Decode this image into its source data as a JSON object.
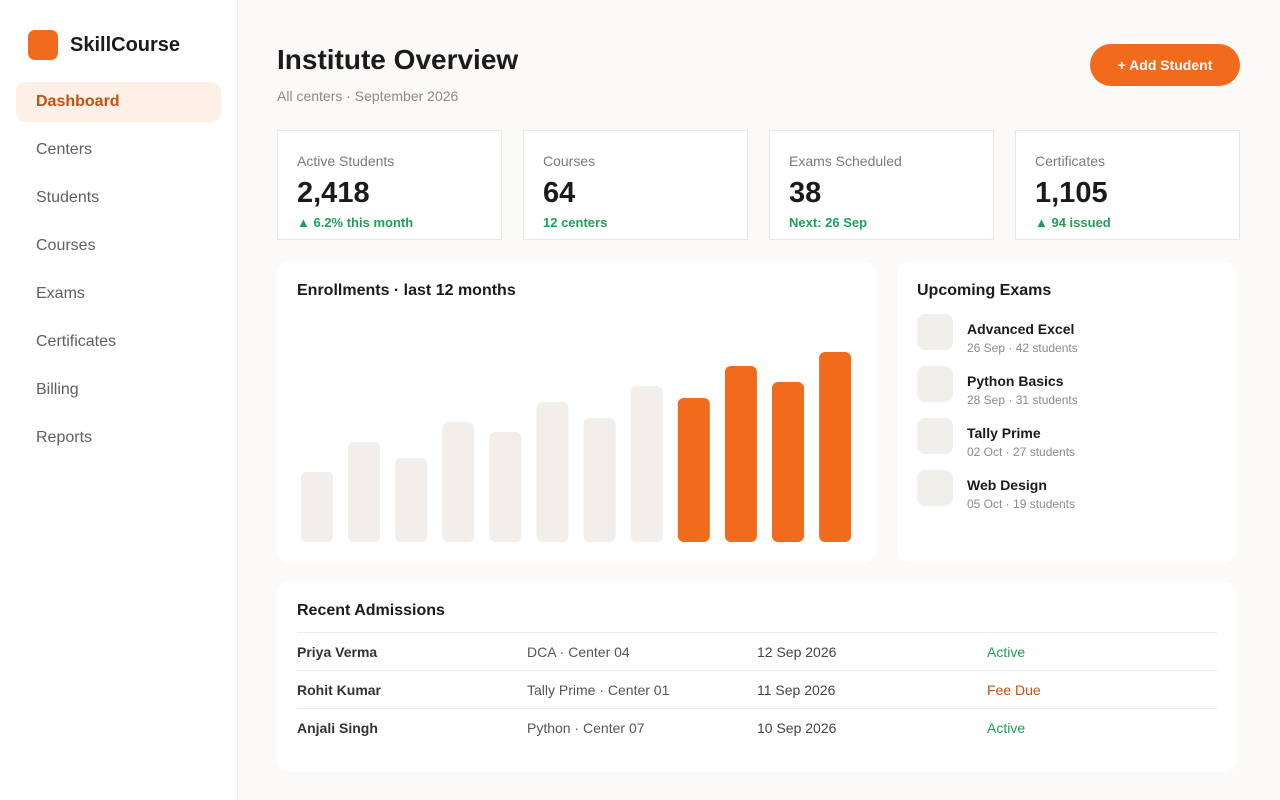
{
  "brand": {
    "name": "SkillCourse",
    "accent": "#f26b1d"
  },
  "sidebar": {
    "items": [
      {
        "label": "Dashboard",
        "active": true
      },
      {
        "label": "Centers"
      },
      {
        "label": "Students"
      },
      {
        "label": "Courses"
      },
      {
        "label": "Exams"
      },
      {
        "label": "Certificates"
      },
      {
        "label": "Billing"
      },
      {
        "label": "Reports"
      }
    ]
  },
  "header": {
    "title": "Institute Overview",
    "subtitle": "All centers · September 2026",
    "add_button": "+ Add Student"
  },
  "stats": [
    {
      "label": "Active Students",
      "value": "2,418",
      "delta": "▲ 6.2% this month"
    },
    {
      "label": "Courses",
      "value": "64",
      "delta": "12 centers"
    },
    {
      "label": "Exams Scheduled",
      "value": "38",
      "delta": "Next: 26 Sep"
    },
    {
      "label": "Certificates",
      "value": "1,105",
      "delta": "▲ 94 issued"
    }
  ],
  "chart_data": {
    "type": "bar",
    "title": "Enrollments · last 12 months",
    "values": [
      70,
      100,
      84,
      120,
      110,
      140,
      124,
      156,
      144,
      176,
      160,
      190
    ],
    "highlighted_from_index": 8,
    "colors": {
      "muted": "#f1eeeb",
      "highlight": "#f26b1d"
    }
  },
  "upcoming_exams": {
    "title": "Upcoming Exams",
    "items": [
      {
        "name": "Advanced Excel",
        "meta": "26 Sep · 42 students"
      },
      {
        "name": "Python Basics",
        "meta": "28 Sep · 31 students"
      },
      {
        "name": "Tally Prime",
        "meta": "02 Oct · 27 students"
      },
      {
        "name": "Web Design",
        "meta": "05 Oct · 19 students"
      }
    ]
  },
  "admissions": {
    "title": "Recent Admissions",
    "rows": [
      {
        "name": "Priya Verma",
        "course": "DCA · Center 04",
        "date": "12 Sep 2026",
        "status": "Active",
        "status_type": "active"
      },
      {
        "name": "Rohit Kumar",
        "course": "Tally Prime · Center 01",
        "date": "11 Sep 2026",
        "status": "Fee Due",
        "status_type": "due"
      },
      {
        "name": "Anjali Singh",
        "course": "Python · Center 07",
        "date": "10 Sep 2026",
        "status": "Active",
        "status_type": "active"
      }
    ]
  }
}
